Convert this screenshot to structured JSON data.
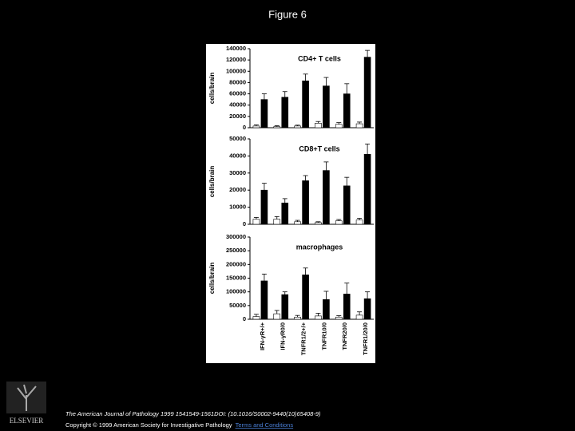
{
  "title": "Figure 6",
  "chart_data": [
    {
      "type": "bar",
      "title": "CD4+ T cells",
      "ylabel": "cells/brain",
      "categories": [
        null,
        null,
        null,
        null,
        null,
        null
      ],
      "series": [
        {
          "color": "#ffffff",
          "values": [
            3000,
            2000,
            3000,
            8000,
            6000,
            7000
          ],
          "errors": [
            2000,
            1500,
            1500,
            3000,
            3000,
            3000
          ]
        },
        {
          "color": "#000000",
          "values": [
            50000,
            54000,
            83000,
            74000,
            60000,
            125000
          ],
          "errors": [
            10000,
            10000,
            12000,
            15000,
            18000,
            12000
          ]
        }
      ],
      "ylim": [
        0,
        140000
      ],
      "yticks": [
        0,
        20000,
        40000,
        60000,
        80000,
        100000,
        120000,
        140000
      ]
    },
    {
      "type": "bar",
      "title": "CD8+T cells",
      "ylabel": "cells/brain",
      "categories": [
        null,
        null,
        null,
        null,
        null,
        null
      ],
      "series": [
        {
          "color": "#ffffff",
          "values": [
            3000,
            3000,
            1500,
            1000,
            2000,
            2500
          ],
          "errors": [
            1000,
            1500,
            800,
            500,
            800,
            1000
          ]
        },
        {
          "color": "#000000",
          "values": [
            20000,
            12500,
            25500,
            31500,
            22500,
            41000
          ],
          "errors": [
            4000,
            2500,
            3000,
            5000,
            5000,
            6000
          ]
        }
      ],
      "ylim": [
        0,
        50000
      ],
      "yticks": [
        0,
        10000,
        20000,
        30000,
        40000,
        50000
      ]
    },
    {
      "type": "bar",
      "title": "macrophages",
      "ylabel": "cells/brain",
      "categories": [
        "IFN-γR+/+",
        "IFN-γR0/0",
        "TNFR1/2+/+",
        "TNFR10/0",
        "TNFR20/0",
        "TNFR1/20/0"
      ],
      "series": [
        {
          "color": "#ffffff",
          "values": [
            10000,
            20000,
            8000,
            12000,
            8000,
            15000
          ],
          "errors": [
            8000,
            12000,
            6000,
            10000,
            5000,
            12000
          ]
        },
        {
          "color": "#000000",
          "values": [
            140000,
            90000,
            162000,
            72000,
            92000,
            75000
          ],
          "errors": [
            25000,
            10000,
            25000,
            30000,
            40000,
            25000
          ]
        }
      ],
      "ylim": [
        0,
        300000
      ],
      "yticks": [
        0,
        50000,
        100000,
        150000,
        200000,
        250000,
        300000
      ]
    }
  ],
  "footer": {
    "citation": "The American Journal of Pathology 1999 1541549-1561DOI: (10.1016/S0002-9440(10)65408-9)",
    "copyright": "Copyright © 1999 American Society for Investigative Pathology",
    "link": "Terms and Conditions"
  },
  "logo": "ELSEVIER"
}
